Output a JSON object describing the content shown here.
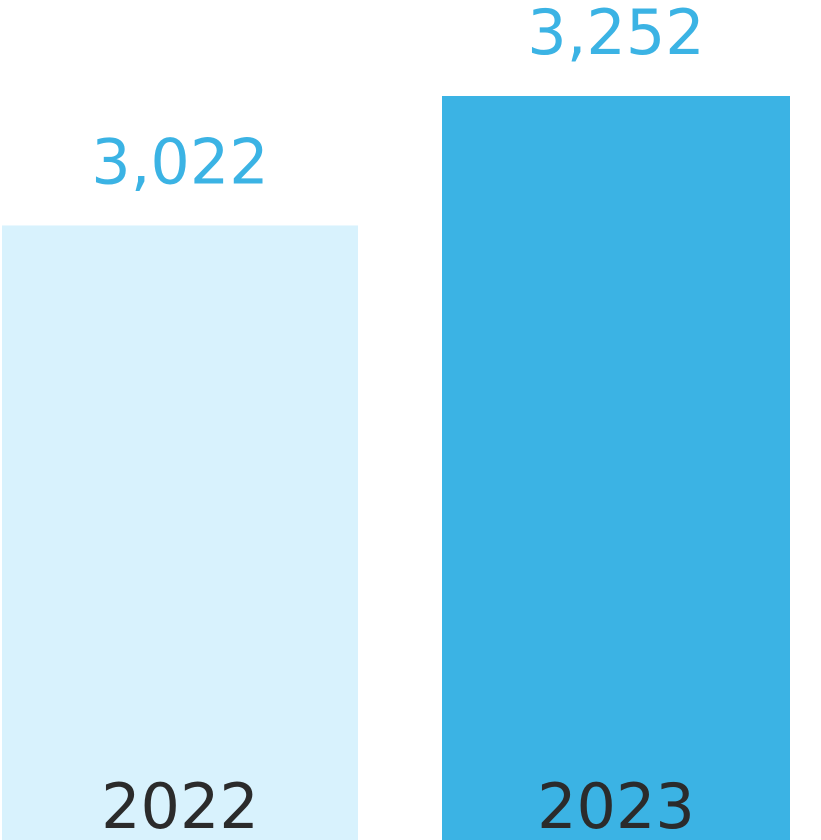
{
  "chart_data": {
    "type": "bar",
    "categories": [
      "2022",
      "2023"
    ],
    "values": [
      3022,
      3252
    ],
    "value_labels": [
      "3,022",
      "3,252"
    ],
    "title": "",
    "xlabel": "",
    "ylabel": "",
    "ylim": [
      1930,
      3252
    ],
    "grid": false,
    "legend": "none",
    "colors": {
      "bars": [
        "#d8f2fd",
        "#3bb3e4"
      ],
      "value_label": "#3bb3e4",
      "category_label": "#2b2b2b"
    }
  }
}
